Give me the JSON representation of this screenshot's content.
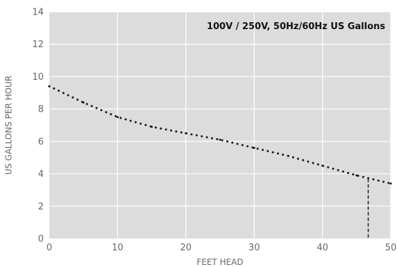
{
  "chart_data": {
    "type": "line",
    "xlabel": "FEET HEAD",
    "ylabel": "US GALLONS PER HOUR",
    "annotation": "100V / 250V, 50Hz/60Hz US Gallons",
    "xlim": [
      0,
      50
    ],
    "ylim": [
      0,
      14
    ],
    "x_ticks": [
      0,
      10,
      20,
      30,
      40,
      50
    ],
    "y_ticks": [
      0,
      2,
      4,
      6,
      8,
      10,
      12,
      14
    ],
    "grid": true,
    "series": [
      {
        "style": "dotted",
        "x": [
          0,
          5,
          10,
          15,
          20,
          25,
          30,
          35,
          40,
          45,
          50
        ],
        "y": [
          9.4,
          8.4,
          7.5,
          6.9,
          6.5,
          6.1,
          5.6,
          5.1,
          4.5,
          3.9,
          3.4
        ]
      }
    ],
    "reference_line": {
      "style": "dashed",
      "x": 46.7,
      "y_from": 0,
      "y_to": 3.7
    },
    "colors": {
      "plot_background": "#dcdcdc",
      "grid": "#ffffff",
      "line": "#1a1a1a",
      "text": "#666666"
    }
  }
}
